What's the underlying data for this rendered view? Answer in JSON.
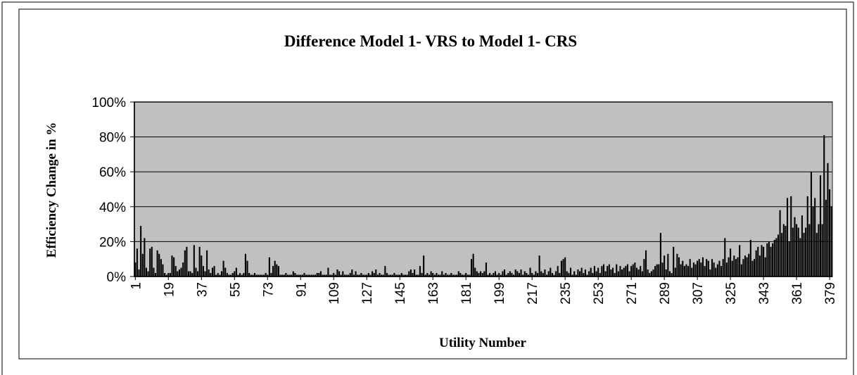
{
  "chart_data": {
    "type": "bar",
    "title": "Difference Model 1- VRS to Model 1- CRS",
    "y_label": "Efficiency Change in %",
    "x_label": "Utility Number",
    "color": "#000000",
    "plot_background": "#c0c0c0",
    "grid": true,
    "ylim": [
      0,
      100
    ],
    "yticks": [
      {
        "value": 0,
        "label": "0%"
      },
      {
        "value": 20,
        "label": "20%"
      },
      {
        "value": 40,
        "label": "40%"
      },
      {
        "value": 60,
        "label": "60%"
      },
      {
        "value": 80,
        "label": "80%"
      },
      {
        "value": 100,
        "label": "100%"
      }
    ],
    "categories": [
      "1",
      null,
      null,
      null,
      null,
      null,
      null,
      null,
      null,
      null,
      null,
      null,
      null,
      null,
      null,
      null,
      null,
      null,
      "19",
      null,
      null,
      null,
      null,
      null,
      null,
      null,
      null,
      null,
      null,
      null,
      null,
      null,
      null,
      null,
      null,
      null,
      "37",
      null,
      null,
      null,
      null,
      null,
      null,
      null,
      null,
      null,
      null,
      null,
      null,
      null,
      null,
      null,
      null,
      null,
      "55",
      null,
      null,
      null,
      null,
      null,
      null,
      null,
      null,
      null,
      null,
      null,
      null,
      null,
      null,
      null,
      null,
      null,
      "73",
      null,
      null,
      null,
      null,
      null,
      null,
      null,
      null,
      null,
      null,
      null,
      null,
      null,
      null,
      null,
      null,
      null,
      "91",
      null,
      null,
      null,
      null,
      null,
      null,
      null,
      null,
      null,
      null,
      null,
      null,
      null,
      null,
      null,
      null,
      null,
      "109",
      null,
      null,
      null,
      null,
      null,
      null,
      null,
      null,
      null,
      null,
      null,
      null,
      null,
      null,
      null,
      null,
      null,
      "127",
      null,
      null,
      null,
      null,
      null,
      null,
      null,
      null,
      null,
      null,
      null,
      null,
      null,
      null,
      null,
      null,
      null,
      "145",
      null,
      null,
      null,
      null,
      null,
      null,
      null,
      null,
      null,
      null,
      null,
      null,
      null,
      null,
      null,
      null,
      null,
      "163",
      null,
      null,
      null,
      null,
      null,
      null,
      null,
      null,
      null,
      null,
      null,
      null,
      null,
      null,
      null,
      null,
      null,
      "181",
      null,
      null,
      null,
      null,
      null,
      null,
      null,
      null,
      null,
      null,
      null,
      null,
      null,
      null,
      null,
      null,
      null,
      "199",
      null,
      null,
      null,
      null,
      null,
      null,
      null,
      null,
      null,
      null,
      null,
      null,
      null,
      null,
      null,
      null,
      null,
      "217",
      null,
      null,
      null,
      null,
      null,
      null,
      null,
      null,
      null,
      null,
      null,
      null,
      null,
      null,
      null,
      null,
      null,
      "235",
      null,
      null,
      null,
      null,
      null,
      null,
      null,
      null,
      null,
      null,
      null,
      null,
      null,
      null,
      null,
      null,
      null,
      "253",
      null,
      null,
      null,
      null,
      null,
      null,
      null,
      null,
      null,
      null,
      null,
      null,
      null,
      null,
      null,
      null,
      null,
      "271",
      null,
      null,
      null,
      null,
      null,
      null,
      null,
      null,
      null,
      null,
      null,
      null,
      null,
      null,
      null,
      null,
      null,
      "289",
      null,
      null,
      null,
      null,
      null,
      null,
      null,
      null,
      null,
      null,
      null,
      null,
      null,
      null,
      null,
      null,
      null,
      "307",
      null,
      null,
      null,
      null,
      null,
      null,
      null,
      null,
      null,
      null,
      null,
      null,
      null,
      null,
      null,
      null,
      null,
      "325",
      null,
      null,
      null,
      null,
      null,
      null,
      null,
      null,
      null,
      null,
      null,
      null,
      null,
      null,
      null,
      null,
      null,
      "343",
      null,
      null,
      null,
      null,
      null,
      null,
      null,
      null,
      null,
      null,
      null,
      null,
      null,
      null,
      null,
      null,
      null,
      "361",
      null,
      null,
      null,
      null,
      null,
      null,
      null,
      null,
      null,
      null,
      null,
      null,
      null,
      null,
      null,
      null,
      null,
      "379",
      null
    ],
    "values": [
      8,
      16,
      4,
      29,
      13,
      22,
      5,
      3,
      16,
      17,
      5,
      2,
      15,
      13,
      10,
      7,
      2,
      1,
      2,
      2,
      12,
      11,
      6,
      3,
      4,
      5,
      8,
      15,
      17,
      3,
      3,
      2,
      18,
      5,
      3,
      17,
      12,
      6,
      3,
      15,
      4,
      2,
      5,
      6,
      1,
      2,
      1,
      3,
      9,
      5,
      2,
      1,
      1,
      2,
      3,
      5,
      1,
      2,
      1,
      2,
      13,
      9,
      2,
      1,
      1,
      2,
      1,
      1,
      1,
      1,
      1,
      2,
      1,
      11,
      2,
      6,
      9,
      7,
      6,
      1,
      1,
      1,
      2,
      1,
      1,
      1,
      3,
      2,
      1,
      1,
      1,
      1,
      2,
      1,
      1,
      1,
      1,
      1,
      1,
      2,
      2,
      3,
      1,
      1,
      1,
      5,
      1,
      1,
      2,
      1,
      4,
      3,
      1,
      3,
      1,
      1,
      1,
      2,
      4,
      1,
      3,
      1,
      1,
      2,
      1,
      1,
      1,
      2,
      1,
      3,
      2,
      4,
      1,
      2,
      1,
      1,
      6,
      2,
      1,
      1,
      1,
      2,
      1,
      1,
      1,
      2,
      1,
      1,
      1,
      3,
      4,
      2,
      4,
      1,
      1,
      6,
      2,
      12,
      1,
      2,
      1,
      3,
      2,
      1,
      2,
      1,
      1,
      3,
      1,
      2,
      1,
      1,
      2,
      1,
      1,
      1,
      3,
      2,
      1,
      1,
      2,
      1,
      1,
      10,
      13,
      5,
      3,
      2,
      3,
      2,
      3,
      8,
      1,
      2,
      1,
      2,
      3,
      1,
      2,
      1,
      3,
      4,
      1,
      2,
      3,
      2,
      1,
      4,
      3,
      2,
      4,
      1,
      3,
      2,
      1,
      5,
      2,
      1,
      3,
      2,
      12,
      3,
      2,
      4,
      1,
      3,
      5,
      2,
      1,
      3,
      6,
      2,
      9,
      10,
      11,
      3,
      2,
      5,
      1,
      3,
      1,
      4,
      3,
      5,
      2,
      4,
      1,
      3,
      5,
      2,
      6,
      3,
      5,
      2,
      6,
      7,
      3,
      6,
      7,
      4,
      5,
      2,
      7,
      3,
      6,
      4,
      5,
      6,
      7,
      3,
      6,
      7,
      8,
      5,
      4,
      6,
      3,
      10,
      15,
      4,
      2,
      3,
      4,
      6,
      7,
      7,
      25,
      8,
      12,
      4,
      13,
      3,
      2,
      17,
      5,
      13,
      11,
      7,
      9,
      6,
      7,
      6,
      10,
      5,
      8,
      7,
      9,
      10,
      8,
      11,
      6,
      10,
      9,
      4,
      10,
      8,
      5,
      7,
      9,
      6,
      10,
      22,
      8,
      11,
      16,
      9,
      12,
      10,
      11,
      18,
      7,
      10,
      12,
      11,
      13,
      21,
      9,
      10,
      15,
      17,
      12,
      18,
      17,
      11,
      19,
      20,
      17,
      19,
      21,
      22,
      24,
      38,
      25,
      30,
      29,
      45,
      20,
      46,
      28,
      34,
      30,
      28,
      22,
      35,
      25,
      28,
      46,
      30,
      60,
      40,
      45,
      25,
      30,
      58,
      30,
      81,
      44,
      65,
      50,
      40
    ]
  }
}
